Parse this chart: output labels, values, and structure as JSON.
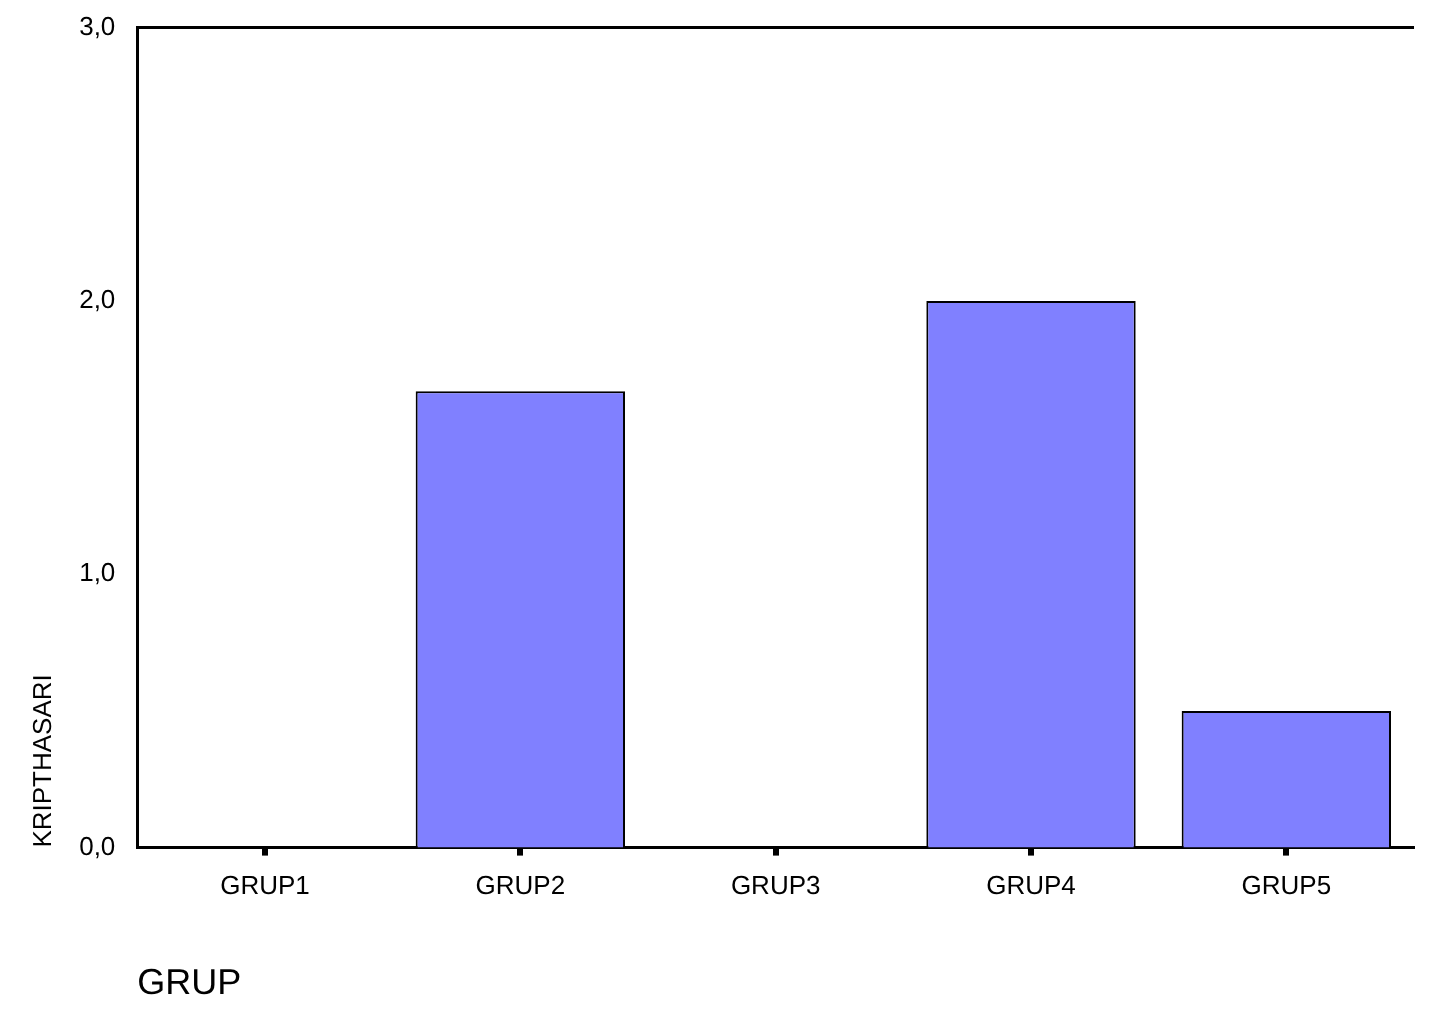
{
  "chart_data": {
    "type": "bar",
    "xlabel": "GRUP",
    "ylabel": "KRIPTHASARI",
    "categories": [
      "GRUP1",
      "GRUP2",
      "GRUP3",
      "GRUP4",
      "GRUP5"
    ],
    "values": [
      0,
      1.67,
      0,
      2.0,
      0.5
    ],
    "color": "#8080ff",
    "ylim": [
      0,
      3
    ],
    "yticks": [
      {
        "value": 0,
        "label": "0,0"
      },
      {
        "value": 1,
        "label": "1,0"
      },
      {
        "value": 2,
        "label": "2,0"
      },
      {
        "value": 3,
        "label": "3,0"
      }
    ],
    "grid": false,
    "legend": false
  }
}
